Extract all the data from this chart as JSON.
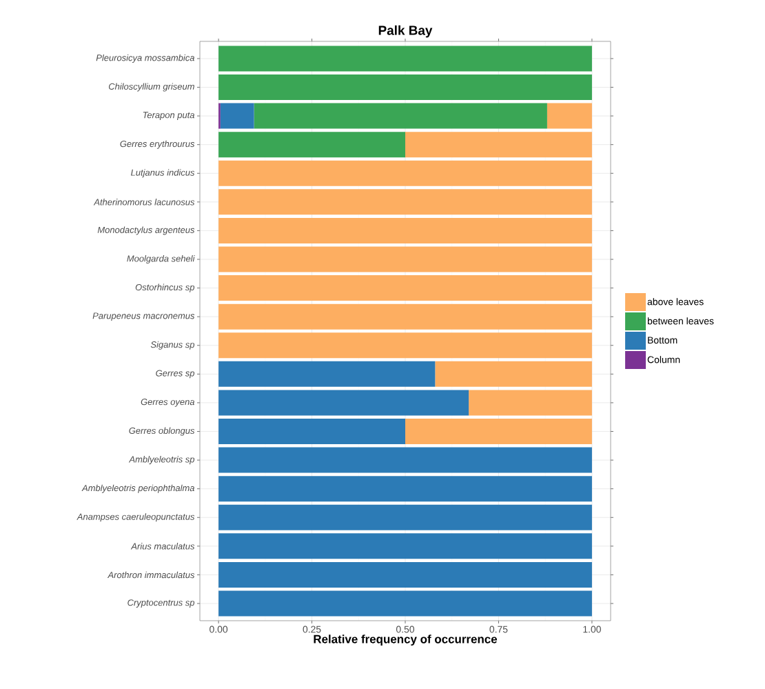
{
  "chart_data": {
    "type": "bar",
    "orientation": "horizontal",
    "stacked": true,
    "title": "Palk Bay",
    "xlabel": "Relative frequency of occurrence",
    "categories": [
      "Pleurosicya mossambica",
      "Chiloscyllium griseum",
      "Terapon puta",
      "Gerres erythrourus",
      "Lutjanus indicus",
      "Atherinomorus lacunosus",
      "Monodactylus argenteus",
      "Moolgarda seheli",
      "Ostorhincus sp",
      "Parupeneus macronemus",
      "Siganus sp",
      "Gerres sp",
      "Gerres oyena",
      "Gerres oblongus",
      "Amblyeleotris sp",
      "Amblyeleotris periophthalma",
      "Anampses caeruleopunctatus",
      "Arius maculatus",
      "Arothron immaculatus",
      "Cryptocentrus sp"
    ],
    "series": [
      {
        "name": "Column",
        "color": "#7b3294",
        "values": [
          0,
          0,
          0.005,
          0,
          0,
          0,
          0,
          0,
          0,
          0,
          0,
          0,
          0,
          0,
          0,
          0,
          0,
          0,
          0,
          0
        ]
      },
      {
        "name": "Bottom",
        "color": "#2c7bb6",
        "values": [
          0,
          0,
          0.09,
          0,
          0,
          0,
          0,
          0,
          0,
          0,
          0,
          0.58,
          0.67,
          0.5,
          1,
          1,
          1,
          1,
          1,
          1
        ]
      },
      {
        "name": "between leaves",
        "color": "#3aa655",
        "values": [
          1,
          1,
          0.785,
          0.5,
          0,
          0,
          0,
          0,
          0,
          0,
          0,
          0,
          0,
          0,
          0,
          0,
          0,
          0,
          0,
          0
        ]
      },
      {
        "name": "above leaves",
        "color": "#fdae61",
        "values": [
          0,
          0,
          0.12,
          0.5,
          1,
          1,
          1,
          1,
          1,
          1,
          1,
          0.42,
          0.33,
          0.5,
          0,
          0,
          0,
          0,
          0,
          0
        ]
      }
    ],
    "xlim": [
      -0.05,
      1.05
    ],
    "xticks": [
      {
        "value": 0,
        "label": "0.00"
      },
      {
        "value": 0.25,
        "label": "0.25"
      },
      {
        "value": 0.5,
        "label": "0.50"
      },
      {
        "value": 0.75,
        "label": "0.75"
      },
      {
        "value": 1,
        "label": "1.00"
      }
    ],
    "grid": true,
    "legend": "right"
  }
}
